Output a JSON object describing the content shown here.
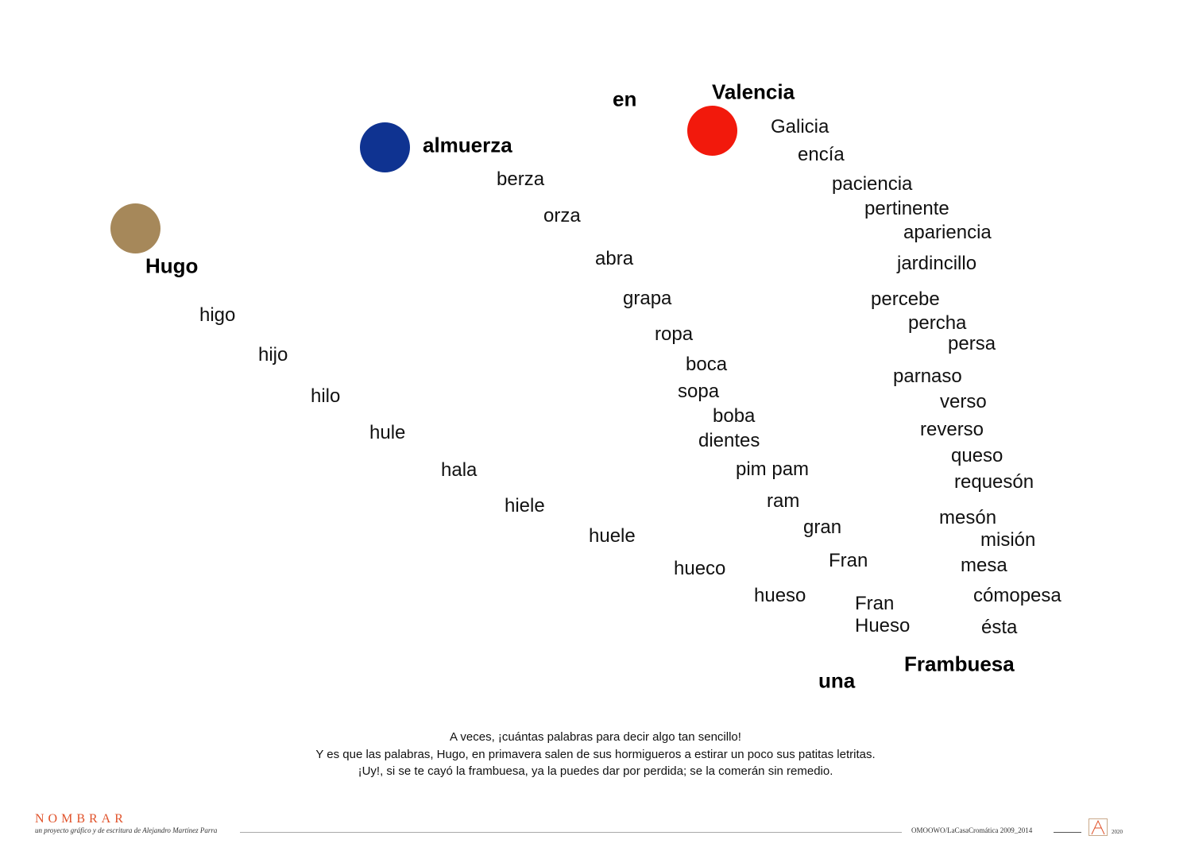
{
  "key_words": [
    "Hugo",
    "almuerza",
    "en",
    "Valencia",
    "una",
    "Frambuesa"
  ],
  "words": [
    "higo",
    "hijo",
    "hilo",
    "hule",
    "hala",
    "hiele",
    "huele",
    "hueco",
    "hueso",
    "berza",
    "orza",
    "abra",
    "grapa",
    "ropa",
    "boca",
    "sopa",
    "boba",
    "dientes",
    "pim pam",
    "ram",
    "gran",
    "Fran",
    "Fran",
    "Hueso",
    "Galicia",
    "encía",
    "paciencia",
    "pertinente",
    "apariencia",
    "jardincillo",
    "percebe",
    "percha",
    "persa",
    "parnaso",
    "verso",
    "reverso",
    "queso",
    "requesón",
    "mesón",
    "misión",
    "mesa",
    "cómopesa",
    "ésta"
  ],
  "text": [
    "A veces, ¡cuántas palabras para decir algo tan sencillo!",
    "Y es que las palabras, Hugo, en primavera salen de sus hormigueros a estirar un poco sus patitas letritas.",
    "¡Uy!, si se te cayó la frambuesa, ya la puedes dar por perdida; se la comerán sin remedio."
  ],
  "footer": {
    "title": "NOMBRAR",
    "subtitle": "un proyecto gráfico y de escritura de Alejandro Martínez Parra",
    "credit": "OMOOWO/LaCasaCromática 2009_2014",
    "year": "2020"
  }
}
